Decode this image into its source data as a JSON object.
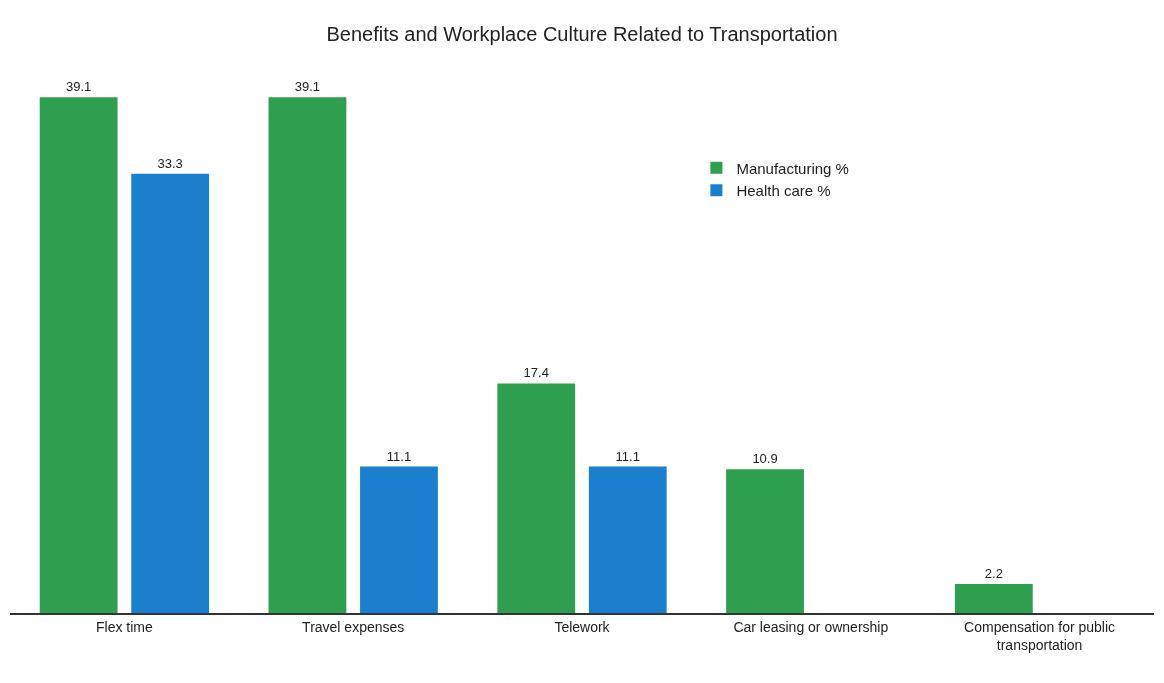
{
  "chart_data": {
    "type": "bar",
    "title": "Benefits and Workplace Culture Related to Transportation",
    "categories": [
      "Flex time",
      "Travel expenses",
      "Telework",
      "Car leasing or ownership",
      "Compensation for public transportation"
    ],
    "series": [
      {
        "name": "Manufacturing %",
        "color": "#2e9e4f",
        "values": [
          39.1,
          39.1,
          17.4,
          10.9,
          2.2
        ]
      },
      {
        "name": "Health care %",
        "color": "#1b7fcf",
        "values": [
          33.3,
          11.1,
          11.1,
          null,
          null
        ]
      }
    ],
    "data_labels": true,
    "legend": "top right",
    "grid": false
  }
}
